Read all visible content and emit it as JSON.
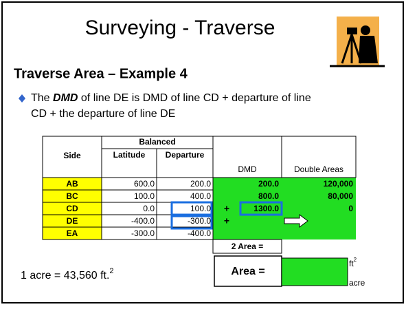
{
  "header": {
    "title": "Surveying - Traverse",
    "subtitle": "Traverse Area – Example 4"
  },
  "bullet": {
    "parts": [
      "The ",
      "DMD",
      " of line DE is DMD of line CD + departure of line",
      "CD + the departure of line DE"
    ]
  },
  "table": {
    "headers": {
      "side": "Side",
      "group": "Balanced",
      "latitude": "Latitude",
      "departure": "Departure",
      "dmd": "DMD",
      "double_areas": "Double Areas"
    },
    "rows": [
      {
        "side": "AB",
        "latitude": "600.0",
        "departure": "200.0",
        "dmd": "200.0",
        "double_area": "120,000"
      },
      {
        "side": "BC",
        "latitude": "100.0",
        "departure": "400.0",
        "dmd": "800.0",
        "double_area": "80,000"
      },
      {
        "side": "CD",
        "latitude": "0.0",
        "departure": "100.0",
        "dmd": "1300.0",
        "double_area": "0",
        "plus": "+"
      },
      {
        "side": "DE",
        "latitude": "-400.0",
        "departure": "-300.0",
        "plus": "+"
      },
      {
        "side": "EA",
        "latitude": "-300.0",
        "departure": "-400.0"
      }
    ],
    "two_area_label": "2 Area ="
  },
  "area": {
    "label": "Area =",
    "unit_ft": "ft",
    "unit_ft_exponent": "2",
    "unit_acre": "acre"
  },
  "conversion": {
    "text": "1 acre = 43,560 ft.",
    "exponent": "2"
  }
}
